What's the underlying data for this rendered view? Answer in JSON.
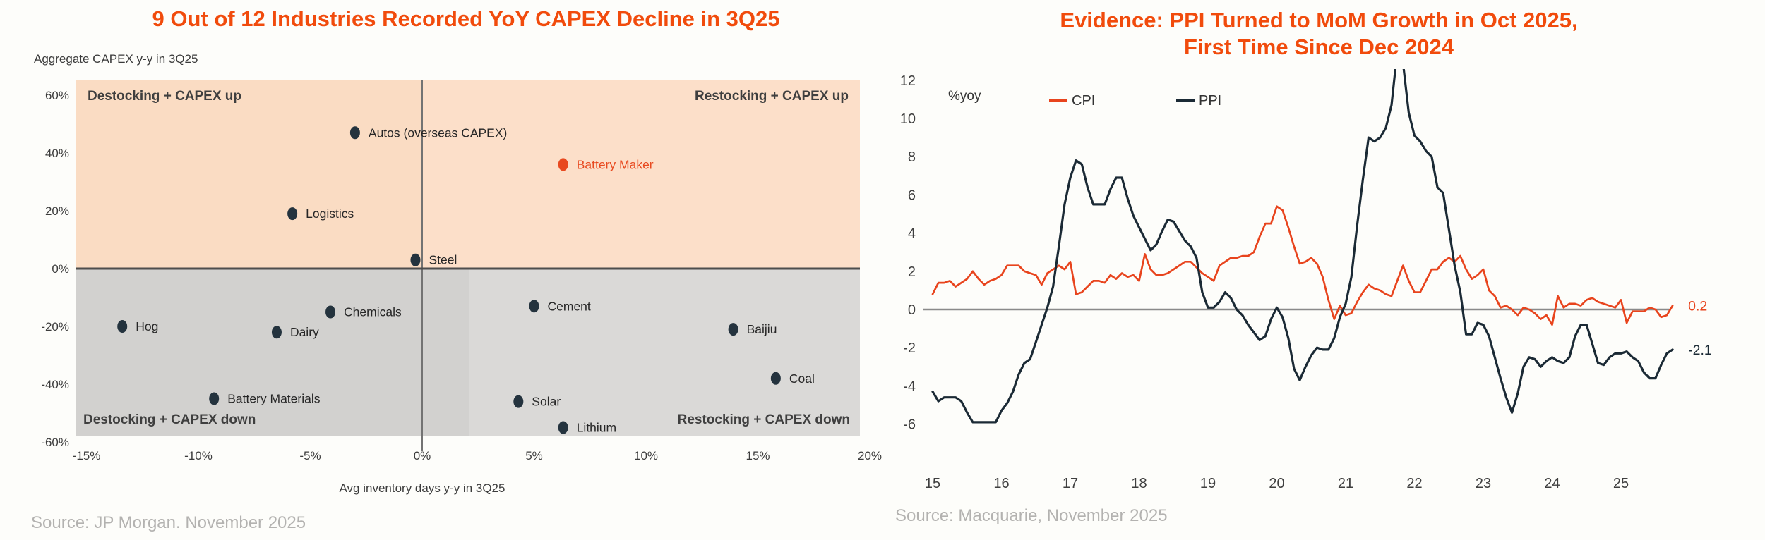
{
  "page": {
    "background": "#fdfdfa",
    "title_color": "#f14b0c",
    "source_color": "#b3b2b0"
  },
  "chart_data": [
    {
      "type": "scatter",
      "title": "9 Out of 12 Industries Recorded YoY CAPEX Decline in 3Q25",
      "y_axis_title": "Aggregate CAPEX y-y in 3Q25",
      "x_axis_title": "Avg inventory days y-y in 3Q25",
      "source": "Source: JP Morgan. November 2025",
      "x_ticks": [
        -15,
        -10,
        -5,
        0,
        5,
        10,
        15,
        20
      ],
      "y_ticks": [
        60,
        40,
        20,
        0,
        -20,
        -40,
        -60
      ],
      "tick_suffix": "%",
      "xlim": [
        -15.5,
        20.5
      ],
      "ylim": [
        -58,
        65
      ],
      "grid": false,
      "quadrant_labels": {
        "top_left": "Destocking + CAPEX up",
        "top_right": "Restocking + CAPEX up",
        "bottom_left": "Destocking + CAPEX down",
        "bottom_right": "Restocking + CAPEX down"
      },
      "quadrant_colors": {
        "top_left": "#fadcc3",
        "top_right": "#fcdfc9",
        "bottom_left": "#d2d1cf",
        "bottom_right": "#dad9d7"
      },
      "point_color": "#24333e",
      "highlight_color": "#e8491f",
      "label_color": "#262626",
      "points": [
        {
          "label": "Autos (overseas CAPEX)",
          "x": -3.0,
          "y": 47
        },
        {
          "label": "Battery Maker",
          "x": 6.3,
          "y": 36,
          "highlight": true
        },
        {
          "label": "Logistics",
          "x": -5.8,
          "y": 19
        },
        {
          "label": "Steel",
          "x": -0.3,
          "y": 3
        },
        {
          "label": "Cement",
          "x": 5.0,
          "y": -13
        },
        {
          "label": "Chemicals",
          "x": -4.1,
          "y": -15
        },
        {
          "label": "Hog",
          "x": -13.4,
          "y": -20
        },
        {
          "label": "Dairy",
          "x": -6.5,
          "y": -22
        },
        {
          "label": "Baijiu",
          "x": 13.9,
          "y": -21
        },
        {
          "label": "Coal",
          "x": 15.8,
          "y": -38
        },
        {
          "label": "Battery Materials",
          "x": -9.3,
          "y": -45
        },
        {
          "label": "Solar",
          "x": 4.3,
          "y": -46
        },
        {
          "label": "Lithium",
          "x": 6.3,
          "y": -55
        }
      ]
    },
    {
      "type": "line",
      "title_line1": "Evidence: PPI Turned to MoM Growth in Oct 2025,",
      "title_line2": "First Time Since Dec 2024",
      "unit_label": "%yoy",
      "source": "Source: Macquarie, November 2025",
      "x_ticks": [
        15,
        16,
        17,
        18,
        19,
        20,
        21,
        22,
        23,
        24,
        25
      ],
      "y_ticks": [
        12,
        10,
        8,
        6,
        4,
        2,
        0,
        -2,
        -4,
        -6
      ],
      "ylim": [
        -6,
        12
      ],
      "start_year": 2015,
      "frequency": "monthly",
      "grid": false,
      "legend_position": "top",
      "series": [
        {
          "name": "CPI",
          "color": "#e8441d",
          "end_label": "0.2",
          "values": [
            0.8,
            1.4,
            1.4,
            1.5,
            1.2,
            1.4,
            1.6,
            2.0,
            1.6,
            1.3,
            1.5,
            1.6,
            1.8,
            2.3,
            2.3,
            2.3,
            2.0,
            1.9,
            1.8,
            1.3,
            1.9,
            2.1,
            2.3,
            2.1,
            2.5,
            0.8,
            0.9,
            1.2,
            1.5,
            1.5,
            1.4,
            1.8,
            1.6,
            1.9,
            1.7,
            1.8,
            1.5,
            2.9,
            2.1,
            1.8,
            1.8,
            1.9,
            2.1,
            2.3,
            2.5,
            2.5,
            2.2,
            1.9,
            1.7,
            1.5,
            2.3,
            2.5,
            2.7,
            2.7,
            2.8,
            2.8,
            3.0,
            3.8,
            4.5,
            4.5,
            5.4,
            5.2,
            4.3,
            3.3,
            2.4,
            2.5,
            2.7,
            2.4,
            1.7,
            0.5,
            -0.5,
            0.2,
            -0.3,
            -0.2,
            0.4,
            0.9,
            1.3,
            1.1,
            1.0,
            0.8,
            0.7,
            1.5,
            2.3,
            1.5,
            0.9,
            0.9,
            1.5,
            2.1,
            2.1,
            2.5,
            2.7,
            2.5,
            2.8,
            2.1,
            1.6,
            1.8,
            2.1,
            1.0,
            0.7,
            0.1,
            0.2,
            0.0,
            -0.3,
            0.1,
            0.0,
            -0.2,
            -0.5,
            -0.3,
            -0.8,
            0.7,
            0.1,
            0.3,
            0.3,
            0.2,
            0.5,
            0.6,
            0.4,
            0.3,
            0.2,
            0.1,
            0.5,
            -0.7,
            -0.1,
            -0.1,
            -0.1,
            0.1,
            0.0,
            -0.4,
            -0.3,
            0.2
          ]
        },
        {
          "name": "PPI",
          "color": "#1b2a35",
          "end_label": "-2.1",
          "values": [
            -4.3,
            -4.8,
            -4.6,
            -4.6,
            -4.6,
            -4.8,
            -5.4,
            -5.9,
            -5.9,
            -5.9,
            -5.9,
            -5.9,
            -5.3,
            -4.9,
            -4.3,
            -3.4,
            -2.8,
            -2.6,
            -1.7,
            -0.8,
            0.1,
            1.2,
            3.3,
            5.5,
            6.9,
            7.8,
            7.6,
            6.4,
            5.5,
            5.5,
            5.5,
            6.3,
            6.9,
            6.9,
            5.8,
            4.9,
            4.3,
            3.7,
            3.1,
            3.4,
            4.1,
            4.7,
            4.6,
            4.1,
            3.6,
            3.3,
            2.7,
            0.9,
            0.1,
            0.1,
            0.4,
            0.9,
            0.6,
            0.0,
            -0.3,
            -0.8,
            -1.2,
            -1.6,
            -1.4,
            -0.5,
            0.1,
            -0.4,
            -1.5,
            -3.1,
            -3.7,
            -3.0,
            -2.4,
            -2.0,
            -2.1,
            -2.1,
            -1.5,
            -0.4,
            0.3,
            1.7,
            4.4,
            6.8,
            9.0,
            8.8,
            9.0,
            9.5,
            10.7,
            13.5,
            12.9,
            10.3,
            9.1,
            8.8,
            8.3,
            8.0,
            6.4,
            6.1,
            4.2,
            2.3,
            0.9,
            -1.3,
            -1.3,
            -0.7,
            -0.8,
            -1.4,
            -2.5,
            -3.6,
            -4.6,
            -5.4,
            -4.4,
            -3.0,
            -2.5,
            -2.6,
            -3.0,
            -2.7,
            -2.5,
            -2.7,
            -2.8,
            -2.5,
            -1.4,
            -0.8,
            -0.8,
            -1.8,
            -2.8,
            -2.9,
            -2.5,
            -2.3,
            -2.3,
            -2.2,
            -2.5,
            -2.7,
            -3.3,
            -3.6,
            -3.6,
            -2.9,
            -2.3,
            -2.1
          ]
        }
      ]
    }
  ]
}
